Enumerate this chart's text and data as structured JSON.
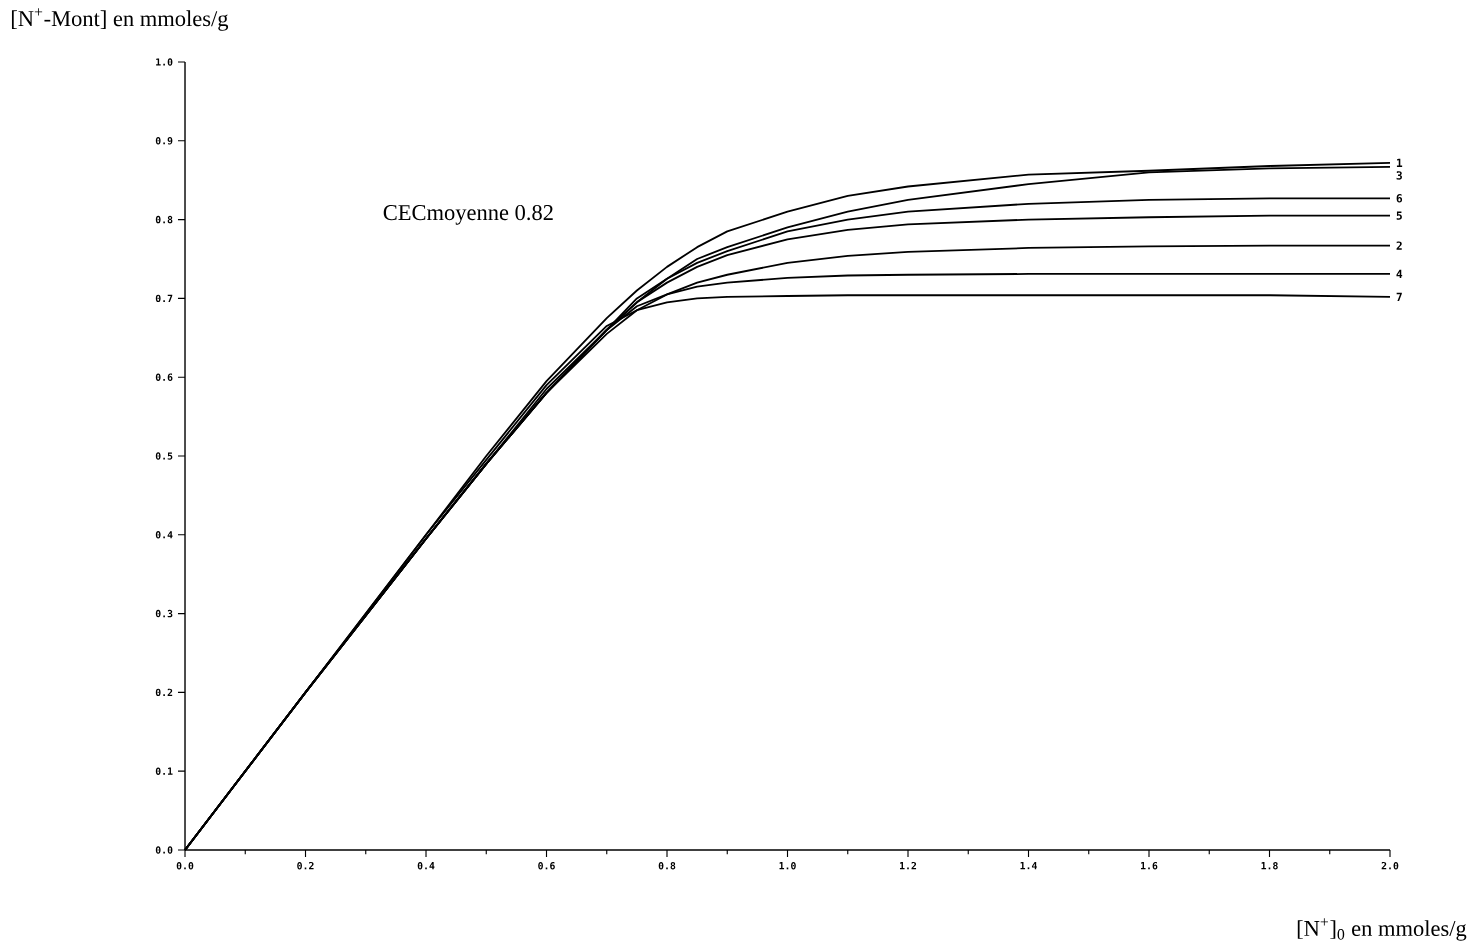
{
  "chart_data": {
    "type": "line",
    "xlabel": "[N$^{+}$]$_{0}$ en mmoles/g",
    "ylabel": "[N$^{+}$-Mont] en mmoles/g",
    "annotations": [
      "CECmoyenne 0.82"
    ],
    "x": [
      0,
      0.2,
      0.4,
      0.5,
      0.6,
      0.7,
      0.75,
      0.8,
      0.85,
      0.9,
      1.0,
      1.1,
      1.2,
      1.4,
      1.6,
      1.8,
      2.0
    ],
    "series": [
      {
        "name": "1",
        "color": "#000000",
        "values": [
          0,
          0.2,
          0.4,
          0.5,
          0.595,
          0.675,
          0.71,
          0.74,
          0.765,
          0.785,
          0.81,
          0.83,
          0.842,
          0.857,
          0.862,
          0.868,
          0.872
        ]
      },
      {
        "name": "2",
        "color": "#000000",
        "values": [
          0,
          0.2,
          0.395,
          0.49,
          0.58,
          0.655,
          0.685,
          0.705,
          0.72,
          0.73,
          0.745,
          0.754,
          0.759,
          0.764,
          0.766,
          0.767,
          0.767
        ]
      },
      {
        "name": "3",
        "color": "#000000",
        "values": [
          0,
          0.2,
          0.395,
          0.49,
          0.58,
          0.66,
          0.7,
          0.725,
          0.75,
          0.765,
          0.79,
          0.81,
          0.825,
          0.845,
          0.86,
          0.865,
          0.867
        ]
      },
      {
        "name": "4",
        "color": "#000000",
        "values": [
          0,
          0.2,
          0.395,
          0.49,
          0.585,
          0.66,
          0.69,
          0.705,
          0.715,
          0.72,
          0.726,
          0.729,
          0.73,
          0.731,
          0.731,
          0.731,
          0.731
        ]
      },
      {
        "name": "5",
        "color": "#000000",
        "values": [
          0,
          0.2,
          0.395,
          0.49,
          0.58,
          0.66,
          0.695,
          0.72,
          0.74,
          0.755,
          0.775,
          0.787,
          0.794,
          0.8,
          0.803,
          0.805,
          0.805
        ]
      },
      {
        "name": "6",
        "color": "#000000",
        "values": [
          0,
          0.2,
          0.395,
          0.49,
          0.58,
          0.66,
          0.695,
          0.725,
          0.745,
          0.76,
          0.785,
          0.8,
          0.81,
          0.82,
          0.825,
          0.827,
          0.827
        ]
      },
      {
        "name": "7",
        "color": "#000000",
        "values": [
          0,
          0.2,
          0.4,
          0.495,
          0.59,
          0.665,
          0.685,
          0.695,
          0.7,
          0.702,
          0.703,
          0.704,
          0.704,
          0.704,
          0.704,
          0.704,
          0.702
        ]
      }
    ],
    "xlim": [
      0,
      2.0
    ],
    "ylim": [
      0,
      1.0
    ],
    "xticks": [
      {
        "value": 0,
        "label": "0.0"
      },
      {
        "value": 0.2,
        "label": "0.2"
      },
      {
        "value": 0.4,
        "label": "0.4"
      },
      {
        "value": 0.6,
        "label": "0.6"
      },
      {
        "value": 0.8,
        "label": "0.8"
      },
      {
        "value": 1.0,
        "label": "1.0"
      },
      {
        "value": 1.2,
        "label": "1.2"
      },
      {
        "value": 1.4,
        "label": "1.4"
      },
      {
        "value": 1.6,
        "label": "1.6"
      },
      {
        "value": 1.8,
        "label": "1.8"
      },
      {
        "value": 2.0,
        "label": "2.0"
      }
    ],
    "yticks": [
      {
        "value": 0,
        "label": "0.0"
      },
      {
        "value": 0.1,
        "label": "0.1"
      },
      {
        "value": 0.2,
        "label": "0.2"
      },
      {
        "value": 0.3,
        "label": "0.3"
      },
      {
        "value": 0.4,
        "label": "0.4"
      },
      {
        "value": 0.5,
        "label": "0.5"
      },
      {
        "value": 0.6,
        "label": "0.6"
      },
      {
        "value": 0.7,
        "label": "0.7"
      },
      {
        "value": 0.8,
        "label": "0.8"
      },
      {
        "value": 0.9,
        "label": "0.9"
      },
      {
        "value": 1.0,
        "label": "1.0"
      }
    ],
    "marker": "none",
    "line_style": "solid"
  }
}
